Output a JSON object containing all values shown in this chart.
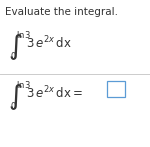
{
  "title": "Evaluate the integral.",
  "background_color": "#ffffff",
  "title_fontsize": 7.5,
  "small_fontsize": 6.0,
  "integral_fontsize": 14,
  "integrand_fontsize": 8.5,
  "line_color": "#cccccc",
  "box_edge_color": "#5b9bd5",
  "box_face_color": "#ffffff",
  "text_color": "#333333",
  "ln3_label": "$\\ln 3$",
  "zero_label": "$0$",
  "integrand1": "$3\\,e^{2x}\\,\\mathrm{dx}$",
  "integrand2": "$3\\,e^{2x}\\,\\mathrm{dx} =$"
}
